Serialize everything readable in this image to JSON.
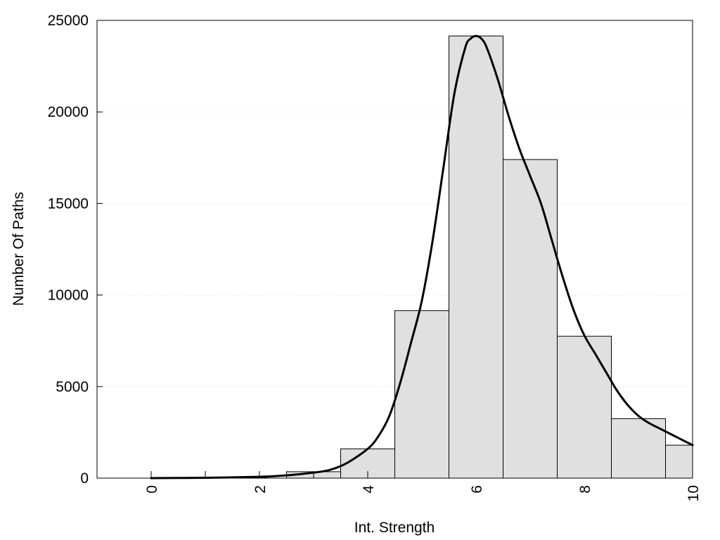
{
  "chart_data": {
    "type": "bar",
    "title": "",
    "xlabel": "Int. Strength",
    "ylabel": "Number Of Paths",
    "xlim": [
      -1,
      10
    ],
    "ylim": [
      0,
      25000
    ],
    "x_ticks": [
      0,
      2,
      4,
      6,
      8,
      10
    ],
    "x_tick_labels": [
      "0",
      "2",
      "4",
      "6",
      "8",
      "10"
    ],
    "x_tick_label_rotation": "vertical",
    "x_minor_ticks": [
      0,
      1,
      2,
      3,
      4
    ],
    "y_ticks": [
      0,
      5000,
      10000,
      15000,
      20000,
      25000
    ],
    "y_tick_labels": [
      "0",
      "5000",
      "10000",
      "15000",
      "20000",
      "25000"
    ],
    "grid": "horizontal dotted",
    "legend": "none",
    "bins": [
      {
        "start": 2.5,
        "end": 3.5,
        "value": 350
      },
      {
        "start": 3.5,
        "end": 4.5,
        "value": 1600
      },
      {
        "start": 4.5,
        "end": 5.5,
        "value": 9150
      },
      {
        "start": 5.5,
        "end": 6.5,
        "value": 24150
      },
      {
        "start": 6.5,
        "end": 7.5,
        "value": 17400
      },
      {
        "start": 7.5,
        "end": 8.5,
        "value": 7750
      },
      {
        "start": 8.5,
        "end": 9.5,
        "value": 3250
      },
      {
        "start": 9.5,
        "end": 10.0,
        "value": 1800
      }
    ],
    "density_curve": {
      "type": "line",
      "x": [
        0,
        1,
        2,
        2.5,
        3,
        3.3,
        3.6,
        4.0,
        4.2,
        4.4,
        4.6,
        4.8,
        5.0,
        5.2,
        5.4,
        5.6,
        5.8,
        5.9,
        6.0,
        6.1,
        6.2,
        6.4,
        6.6,
        6.8,
        7.0,
        7.2,
        7.4,
        7.6,
        7.8,
        8.0,
        8.2,
        8.4,
        8.6,
        8.8,
        9.0,
        9.2,
        9.4,
        9.6,
        9.8,
        10.0
      ],
      "y": [
        0,
        20,
        70,
        150,
        300,
        450,
        800,
        1600,
        2300,
        3400,
        5200,
        7400,
        9700,
        13000,
        17000,
        21000,
        23500,
        24000,
        24150,
        24000,
        23500,
        21800,
        19800,
        18000,
        16500,
        15000,
        13000,
        11000,
        9200,
        7800,
        6800,
        5800,
        4800,
        4000,
        3400,
        3000,
        2700,
        2400,
        2100,
        1800
      ]
    },
    "colors": {
      "bar_fill": "#e0e0e0",
      "bar_stroke": "#000000",
      "curve": "#000000",
      "grid": "#d9d9d9",
      "frame": "#000000"
    }
  }
}
